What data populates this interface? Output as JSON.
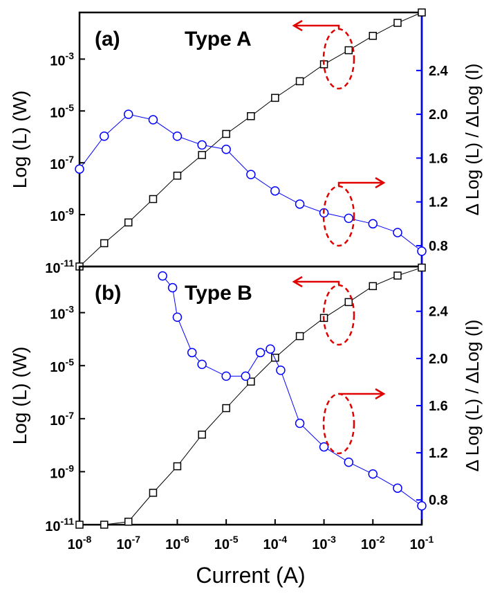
{
  "chart_data": [
    {
      "type": "scatter",
      "panel_label": "(a)",
      "annotation": "Type A",
      "ylabel": "Log (L) (W)",
      "y2label": "Δ Log (L) / ΔLog (I)",
      "xscale": "log",
      "yscale": "log",
      "xlim": [
        1e-08,
        0.1
      ],
      "ylim": [
        1e-11,
        0.063
      ],
      "y2lim": [
        0.61,
        2.93
      ],
      "yticks": [
        {
          "value": 1e-11,
          "label": "10-11"
        },
        {
          "value": 1e-09,
          "label": "10-9"
        },
        {
          "value": 1e-07,
          "label": "10-7"
        },
        {
          "value": 1e-05,
          "label": "10-5"
        },
        {
          "value": 0.001,
          "label": "10-3"
        }
      ],
      "y2ticks": [
        0.8,
        1.2,
        1.6,
        2.0,
        2.4
      ],
      "series": [
        {
          "marker": "square",
          "color": "#000000",
          "x": [
            1e-08,
            3.2e-08,
            1e-07,
            3.2e-07,
            1e-06,
            3.2e-06,
            1e-05,
            3.2e-05,
            0.0001,
            0.00032,
            0.001,
            0.0032,
            0.01,
            0.032,
            0.1
          ],
          "values": [
            1e-11,
            7.9e-11,
            5e-10,
            4e-09,
            3.2e-08,
            2e-07,
            1.3e-06,
            6.3e-06,
            3.2e-05,
            0.00014,
            0.00063,
            0.0022,
            0.0079,
            0.025,
            0.063
          ]
        },
        {
          "marker": "circle",
          "color": "#0000ff",
          "axis": "y2",
          "x": [
            1e-08,
            3.2e-08,
            1e-07,
            3.2e-07,
            1e-06,
            3.2e-06,
            1e-05,
            3.2e-05,
            0.0001,
            0.00032,
            0.001,
            0.0032,
            0.01,
            0.032,
            0.1
          ],
          "values": [
            1.5,
            1.8,
            2.0,
            1.95,
            1.8,
            1.72,
            1.68,
            1.45,
            1.3,
            1.18,
            1.1,
            1.05,
            1.0,
            0.92,
            0.75
          ]
        }
      ]
    },
    {
      "type": "scatter",
      "panel_label": "(b)",
      "annotation": "Type B",
      "xlabel": "Current (A)",
      "ylabel": "Log (L) (W)",
      "y2label": "Δ Log (L) / ΔLog (I)",
      "xscale": "log",
      "yscale": "log",
      "xlim": [
        1e-08,
        0.1
      ],
      "ylim": [
        1e-11,
        0.055
      ],
      "y2lim": [
        0.59,
        2.78
      ],
      "xticks": [
        {
          "value": 1e-08,
          "label": "10-8"
        },
        {
          "value": 1e-07,
          "label": "10-7"
        },
        {
          "value": 1e-06,
          "label": "10-6"
        },
        {
          "value": 1e-05,
          "label": "10-5"
        },
        {
          "value": 0.0001,
          "label": "10-4"
        },
        {
          "value": 0.001,
          "label": "10-3"
        },
        {
          "value": 0.01,
          "label": "10-2"
        },
        {
          "value": 0.1,
          "label": "10-1"
        }
      ],
      "yticks": [
        {
          "value": 1e-11,
          "label": "10-11"
        },
        {
          "value": 1e-09,
          "label": "10-9"
        },
        {
          "value": 1e-07,
          "label": "10-7"
        },
        {
          "value": 1e-05,
          "label": "10-5"
        },
        {
          "value": 0.001,
          "label": "10-3"
        }
      ],
      "y2ticks": [
        0.8,
        1.2,
        1.6,
        2.0,
        2.4
      ],
      "series": [
        {
          "marker": "square",
          "color": "#000000",
          "x": [
            1e-08,
            3.2e-08,
            1e-07,
            3.2e-07,
            1e-06,
            3.2e-06,
            1e-05,
            3.2e-05,
            0.0001,
            0.00032,
            0.001,
            0.0032,
            0.01,
            0.032,
            0.1
          ],
          "values": [
            1e-11,
            1e-11,
            1.3e-11,
            1.6e-10,
            1.6e-09,
            2.5e-08,
            2.5e-07,
            2.5e-06,
            2e-05,
            0.00013,
            0.00063,
            0.0025,
            0.01,
            0.025,
            0.05
          ]
        },
        {
          "marker": "circle",
          "color": "#0000ff",
          "axis": "y2",
          "x": [
            5e-07,
            8e-07,
            1e-06,
            2e-06,
            3.2e-06,
            1e-05,
            2.5e-05,
            5e-05,
            8e-05,
            0.00013,
            0.00032,
            0.001,
            0.0032,
            0.01,
            0.032,
            0.1
          ],
          "values": [
            2.7,
            2.6,
            2.35,
            2.05,
            1.95,
            1.85,
            1.85,
            2.05,
            2.08,
            1.9,
            1.45,
            1.25,
            1.12,
            1.02,
            0.9,
            0.75
          ]
        }
      ]
    }
  ]
}
